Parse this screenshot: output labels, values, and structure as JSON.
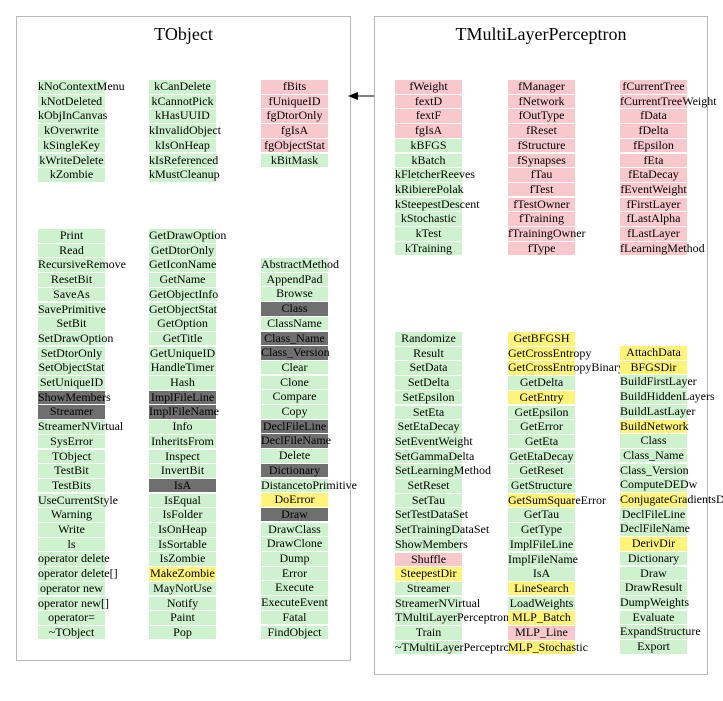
{
  "tobject": {
    "title": "TObject",
    "enums": {
      "col1": [
        "kNoContextMenu",
        "kNotDeleted",
        "kObjInCanvas",
        "kOverwrite",
        "kSingleKey",
        "kWriteDelete",
        "kZombie"
      ],
      "col2": [
        "kCanDelete",
        "kCannotPick",
        "kHasUUID",
        "kInvalidObject",
        "kIsOnHeap",
        "kIsReferenced",
        "kMustCleanup"
      ],
      "col3": [
        "fBits",
        "fUniqueID",
        "fgDtorOnly",
        "fgIsA",
        "fgObjectStat",
        "kBitMask"
      ]
    },
    "methods": {
      "col1": [
        "Print",
        "Read",
        "RecursiveRemove",
        "ResetBit",
        "SaveAs",
        "SavePrimitive",
        "SetBit",
        "SetDrawOption",
        "SetDtorOnly",
        "SetObjectStat",
        "SetUniqueID",
        "ShowMembers",
        "Streamer",
        "StreamerNVirtual",
        "SysError",
        "TObject",
        "TestBit",
        "TestBits",
        "UseCurrentStyle",
        "Warning",
        "Write",
        "ls",
        "operator delete",
        "operator delete[]",
        "operator new",
        "operator new[]",
        "operator=",
        "~TObject"
      ],
      "col1_colors": [
        "g",
        "g",
        "g",
        "g",
        "g",
        "g",
        "g",
        "g",
        "g",
        "g",
        "g",
        "d",
        "d",
        "g",
        "g",
        "g",
        "g",
        "g",
        "g",
        "g",
        "g",
        "g",
        "g",
        "g",
        "g",
        "g",
        "g",
        "g"
      ],
      "col2": [
        "GetDrawOption",
        "GetDtorOnly",
        "GetIconName",
        "GetName",
        "GetObjectInfo",
        "GetObjectStat",
        "GetOption",
        "GetTitle",
        "GetUniqueID",
        "HandleTimer",
        "Hash",
        "ImplFileLine",
        "ImplFileName",
        "Info",
        "InheritsFrom",
        "Inspect",
        "InvertBit",
        "IsA",
        "IsEqual",
        "IsFolder",
        "IsOnHeap",
        "IsSortable",
        "IsZombie",
        "MakeZombie",
        "MayNotUse",
        "Notify",
        "Paint",
        "Pop"
      ],
      "col2_colors": [
        "g",
        "g",
        "g",
        "g",
        "g",
        "g",
        "g",
        "g",
        "g",
        "g",
        "g",
        "d",
        "d",
        "g",
        "g",
        "g",
        "g",
        "d",
        "g",
        "g",
        "g",
        "g",
        "g",
        "y",
        "g",
        "g",
        "g",
        "g"
      ],
      "col3": [
        "AbstractMethod",
        "AppendPad",
        "Browse",
        "Class",
        "ClassName",
        "Class_Name",
        "Class_Version",
        "Clear",
        "Clone",
        "Compare",
        "Copy",
        "DeclFileLine",
        "DeclFileName",
        "Delete",
        "Dictionary",
        "DistancetoPrimitive",
        "DoError",
        "Draw",
        "DrawClass",
        "DrawClone",
        "Dump",
        "Error",
        "Execute",
        "ExecuteEvent",
        "Fatal",
        "FindObject"
      ],
      "col3_colors": [
        "g",
        "g",
        "g",
        "d",
        "g",
        "d",
        "d",
        "g",
        "g",
        "g",
        "g",
        "d",
        "d",
        "g",
        "d",
        "g",
        "y",
        "d",
        "g",
        "g",
        "g",
        "g",
        "g",
        "g",
        "g",
        "g"
      ]
    }
  },
  "mlp": {
    "title": "TMultiLayerPerceptron",
    "members": {
      "col1": [
        "fWeight",
        "fextD",
        "fextF",
        "fgIsA",
        "kBFGS",
        "kBatch",
        "kFletcherReeves",
        "kRibierePolak",
        "kSteepestDescent",
        "kStochastic",
        "kTest",
        "kTraining"
      ],
      "col1_colors": [
        "p",
        "p",
        "p",
        "p",
        "g",
        "g",
        "g",
        "g",
        "g",
        "g",
        "g",
        "g"
      ],
      "col2": [
        "fManager",
        "fNetwork",
        "fOutType",
        "fReset",
        "fStructure",
        "fSynapses",
        "fTau",
        "fTest",
        "fTestOwner",
        "fTraining",
        "fTrainingOwner",
        "fType"
      ],
      "col3": [
        "fCurrentTree",
        "fCurrentTreeWeight",
        "fData",
        "fDelta",
        "fEpsilon",
        "fEta",
        "fEtaDecay",
        "fEventWeight",
        "fFirstLayer",
        "fLastAlpha",
        "fLastLayer",
        "fLearningMethod"
      ]
    },
    "methods": {
      "col1": [
        "Randomize",
        "Result",
        "SetData",
        "SetDelta",
        "SetEpsilon",
        "SetEta",
        "SetEtaDecay",
        "SetEventWeight",
        "SetGammaDelta",
        "SetLearningMethod",
        "SetReset",
        "SetTau",
        "SetTestDataSet",
        "SetTrainingDataSet",
        "ShowMembers",
        "Shuffle",
        "SteepestDir",
        "Streamer",
        "StreamerNVirtual",
        "TMultiLayerPerceptron",
        "Train",
        "~TMultiLayerPerceptron"
      ],
      "col1_colors": [
        "g",
        "g",
        "g",
        "g",
        "g",
        "g",
        "g",
        "g",
        "g",
        "g",
        "g",
        "g",
        "g",
        "g",
        "g",
        "p",
        "y",
        "g",
        "g",
        "g",
        "g",
        "g"
      ],
      "col2": [
        "GetBFGSH",
        "GetCrossEntropy",
        "GetCrossEntropyBinary",
        "GetDelta",
        "GetEntry",
        "GetEpsilon",
        "GetError",
        "GetEta",
        "GetEtaDecay",
        "GetReset",
        "GetStructure",
        "GetSumSquareError",
        "GetTau",
        "GetType",
        "ImplFileLine",
        "ImplFileName",
        "IsA",
        "LineSearch",
        "LoadWeights",
        "MLP_Batch",
        "MLP_Line",
        "MLP_Stochastic"
      ],
      "col2_colors": [
        "y",
        "y",
        "y",
        "g",
        "y",
        "g",
        "g",
        "g",
        "g",
        "g",
        "g",
        "y",
        "g",
        "g",
        "g",
        "g",
        "g",
        "y",
        "g",
        "y",
        "p",
        "y"
      ],
      "col3": [
        "AttachData",
        "BFGSDir",
        "BuildFirstLayer",
        "BuildHiddenLayers",
        "BuildLastLayer",
        "BuildNetwork",
        "Class",
        "Class_Name",
        "Class_Version",
        "ComputeDEDw",
        "ConjugateGradientsDir",
        "DeclFileLine",
        "DeclFileName",
        "DerivDir",
        "Dictionary",
        "Draw",
        "DrawResult",
        "DumpWeights",
        "Evaluate",
        "ExpandStructure",
        "Export"
      ],
      "col3_colors": [
        "y",
        "y",
        "g",
        "g",
        "g",
        "y",
        "g",
        "g",
        "g",
        "g",
        "y",
        "g",
        "g",
        "y",
        "g",
        "g",
        "g",
        "g",
        "g",
        "g",
        "g"
      ]
    }
  },
  "colors": {
    "green": "#cdf2cd",
    "pink": "#f8c8cc",
    "yellow": "#fff37a",
    "dark": "#6f6f6f"
  }
}
